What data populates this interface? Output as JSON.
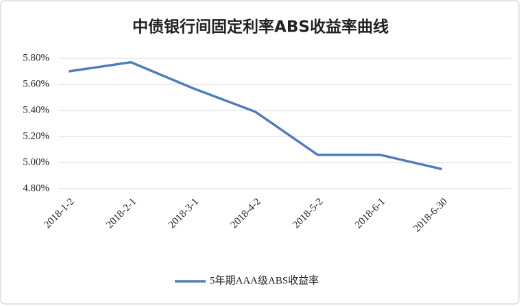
{
  "chart_data": {
    "type": "line",
    "title": "中债银行间固定利率ABS收益率曲线",
    "categories": [
      "2018-1-2",
      "2018-2-1",
      "2018-3-1",
      "2018-4-2",
      "2018-5-2",
      "2018-6-1",
      "2018-6-30"
    ],
    "series": [
      {
        "name": "5年期AAA级ABS收益率",
        "color": "#4f7db8",
        "values": [
          5.7,
          5.77,
          5.57,
          5.39,
          5.06,
          5.06,
          4.95
        ]
      }
    ],
    "ylim": [
      4.8,
      5.8
    ],
    "yticks": [
      {
        "value": 4.8,
        "label": "4.80%"
      },
      {
        "value": 5.0,
        "label": "5.00%"
      },
      {
        "value": 5.2,
        "label": "5.20%"
      },
      {
        "value": 5.4,
        "label": "5.40%"
      },
      {
        "value": 5.6,
        "label": "5.60%"
      },
      {
        "value": 5.8,
        "label": "5.80%"
      }
    ],
    "grid": true,
    "legend": "bottom"
  }
}
